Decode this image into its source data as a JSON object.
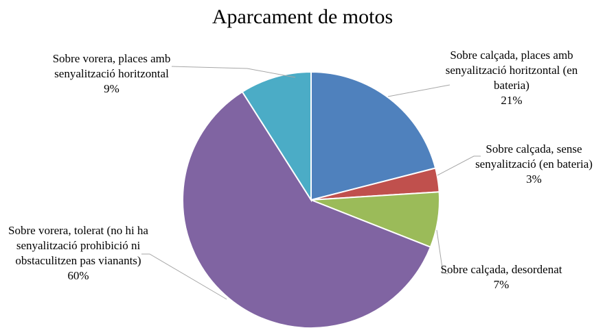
{
  "chart_data": {
    "type": "pie",
    "title": "Aparcament de motos",
    "categories": [
      "Sobre calçada, places amb senyalització horitzontal (en bateria)",
      "Sobre calçada, sense senyalització (en bateria)",
      "Sobre calçada, desordenat",
      "Sobre vorera, tolerat (no hi ha senyalització prohibició ni obstaculitzen pas vianants)",
      "Sobre vorera, places amb senyalització horitzontal"
    ],
    "values": [
      21,
      3,
      7,
      60,
      9
    ],
    "value_labels": [
      "21%",
      "3%",
      "7%",
      "60%",
      "9%"
    ],
    "colors": [
      "#4f81bd",
      "#c0504d",
      "#9bbb59",
      "#8064a2",
      "#4bacc6"
    ]
  }
}
